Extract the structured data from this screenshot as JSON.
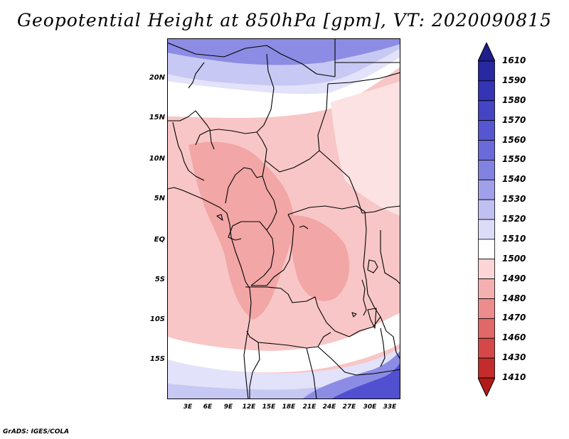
{
  "title": "Geopotential Height at 850hPa [gpm], VT: 2020090815",
  "footer": "GrADS: IGES/COLA",
  "lat_labels": [
    "20N",
    "15N",
    "10N",
    "5N",
    "EQ",
    "5S",
    "10S",
    "15S"
  ],
  "lon_labels": [
    "3E",
    "6E",
    "9E",
    "12E",
    "15E",
    "18E",
    "21E",
    "24E",
    "27E",
    "30E",
    "33E"
  ],
  "colorbar": {
    "labels": [
      "1610",
      "1590",
      "1580",
      "1570",
      "1560",
      "1550",
      "1540",
      "1530",
      "1520",
      "1510",
      "1500",
      "1490",
      "1480",
      "1470",
      "1460",
      "1430",
      "1410"
    ],
    "colors": [
      "#1e1e8c",
      "#2828a0",
      "#3434b4",
      "#4444c4",
      "#5656d0",
      "#6a6ad8",
      "#8282e0",
      "#a0a0ea",
      "#c0c0f2",
      "#dcdcf8",
      "#ffffff",
      "#fcd6d6",
      "#f4b0b0",
      "#ec8c8c",
      "#e06868",
      "#d44848",
      "#c42c2c",
      "#b21a1a"
    ]
  },
  "map": {
    "colors": {
      "deep_blue": "#5050d0",
      "mid_blue": "#8c8ce4",
      "light_blue": "#c8c8f4",
      "pale_blue": "#e2e2fa",
      "white": "#ffffff",
      "pale_pink": "#fce2e2",
      "light_pink": "#f8c6c6",
      "pink": "#f2a6a6"
    }
  }
}
